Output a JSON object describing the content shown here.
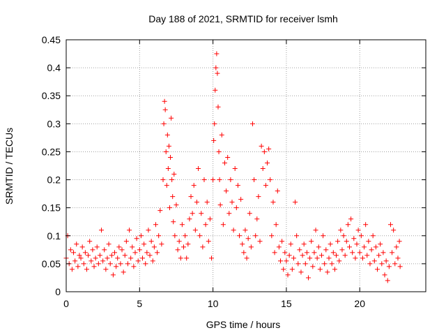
{
  "chart_data": {
    "type": "scatter",
    "title": "Day 188 of 2021, SRMTID for receiver lsmh",
    "xlabel": "GPS time / hours",
    "ylabel": "SRMTID / TECUs",
    "xlim": [
      0,
      24.5
    ],
    "ylim": [
      0,
      0.45
    ],
    "xticks": [
      0,
      5,
      10,
      15,
      20
    ],
    "xtick_labels": [
      "0",
      "5",
      "10",
      "15",
      "20"
    ],
    "yticks": [
      0,
      0.05,
      0.1,
      0.15,
      0.2,
      0.25,
      0.3,
      0.35,
      0.4,
      0.45
    ],
    "ytick_labels": [
      "0",
      "0.05",
      "0.1",
      "0.15",
      "0.2",
      "0.25",
      "0.3",
      "0.35",
      "0.4",
      "0.45"
    ],
    "grid": true,
    "marker": "+",
    "color": "#ff0000",
    "series": [
      {
        "name": "SRMTID",
        "points": [
          [
            0.0,
            0.06
          ],
          [
            0.1,
            0.1
          ],
          [
            0.2,
            0.05
          ],
          [
            0.3,
            0.075
          ],
          [
            0.4,
            0.04
          ],
          [
            0.5,
            0.07
          ],
          [
            0.6,
            0.055
          ],
          [
            0.7,
            0.085
          ],
          [
            0.8,
            0.045
          ],
          [
            0.9,
            0.065
          ],
          [
            1.0,
            0.06
          ],
          [
            1.1,
            0.08
          ],
          [
            1.2,
            0.05
          ],
          [
            1.3,
            0.07
          ],
          [
            1.4,
            0.04
          ],
          [
            1.5,
            0.065
          ],
          [
            1.6,
            0.09
          ],
          [
            1.7,
            0.055
          ],
          [
            1.8,
            0.075
          ],
          [
            1.9,
            0.045
          ],
          [
            2.0,
            0.06
          ],
          [
            2.1,
            0.08
          ],
          [
            2.2,
            0.05
          ],
          [
            2.3,
            0.065
          ],
          [
            2.4,
            0.11
          ],
          [
            2.5,
            0.055
          ],
          [
            2.6,
            0.075
          ],
          [
            2.7,
            0.04
          ],
          [
            2.8,
            0.06
          ],
          [
            2.9,
            0.085
          ],
          [
            3.0,
            0.05
          ],
          [
            3.1,
            0.065
          ],
          [
            3.2,
            0.03
          ],
          [
            3.3,
            0.07
          ],
          [
            3.4,
            0.045
          ],
          [
            3.5,
            0.06
          ],
          [
            3.6,
            0.08
          ],
          [
            3.7,
            0.05
          ],
          [
            3.8,
            0.075
          ],
          [
            3.9,
            0.035
          ],
          [
            4.0,
            0.065
          ],
          [
            4.1,
            0.09
          ],
          [
            4.2,
            0.05
          ],
          [
            4.3,
            0.11
          ],
          [
            4.4,
            0.06
          ],
          [
            4.5,
            0.08
          ],
          [
            4.6,
            0.045
          ],
          [
            4.7,
            0.07
          ],
          [
            4.8,
            0.095
          ],
          [
            4.9,
            0.055
          ],
          [
            5.0,
            0.075
          ],
          [
            5.1,
            0.1
          ],
          [
            5.2,
            0.06
          ],
          [
            5.3,
            0.085
          ],
          [
            5.4,
            0.05
          ],
          [
            5.5,
            0.07
          ],
          [
            5.6,
            0.11
          ],
          [
            5.7,
            0.065
          ],
          [
            5.8,
            0.09
          ],
          [
            5.9,
            0.055
          ],
          [
            6.0,
            0.08
          ],
          [
            6.1,
            0.12
          ],
          [
            6.2,
            0.07
          ],
          [
            6.3,
            0.1
          ],
          [
            6.4,
            0.145
          ],
          [
            6.5,
            0.085
          ],
          [
            6.6,
            0.2
          ],
          [
            6.65,
            0.3
          ],
          [
            6.7,
            0.34
          ],
          [
            6.75,
            0.325
          ],
          [
            6.8,
            0.25
          ],
          [
            6.85,
            0.19
          ],
          [
            6.9,
            0.28
          ],
          [
            6.95,
            0.22
          ],
          [
            7.0,
            0.26
          ],
          [
            7.05,
            0.15
          ],
          [
            7.1,
            0.24
          ],
          [
            7.15,
            0.31
          ],
          [
            7.2,
            0.2
          ],
          [
            7.25,
            0.17
          ],
          [
            7.3,
            0.125
          ],
          [
            7.35,
            0.21
          ],
          [
            7.4,
            0.1
          ],
          [
            7.5,
            0.155
          ],
          [
            7.6,
            0.075
          ],
          [
            7.7,
            0.09
          ],
          [
            7.8,
            0.06
          ],
          [
            7.9,
            0.12
          ],
          [
            8.0,
            0.08
          ],
          [
            8.1,
            0.1
          ],
          [
            8.2,
            0.06
          ],
          [
            8.3,
            0.085
          ],
          [
            8.4,
            0.13
          ],
          [
            8.5,
            0.17
          ],
          [
            8.6,
            0.14
          ],
          [
            8.7,
            0.19
          ],
          [
            8.8,
            0.11
          ],
          [
            8.9,
            0.16
          ],
          [
            9.0,
            0.22
          ],
          [
            9.1,
            0.1
          ],
          [
            9.2,
            0.14
          ],
          [
            9.3,
            0.08
          ],
          [
            9.4,
            0.2
          ],
          [
            9.5,
            0.12
          ],
          [
            9.6,
            0.16
          ],
          [
            9.7,
            0.09
          ],
          [
            9.8,
            0.13
          ],
          [
            9.9,
            0.06
          ],
          [
            10.0,
            0.2
          ],
          [
            10.05,
            0.27
          ],
          [
            10.1,
            0.3
          ],
          [
            10.15,
            0.36
          ],
          [
            10.2,
            0.4
          ],
          [
            10.25,
            0.425
          ],
          [
            10.3,
            0.39
          ],
          [
            10.35,
            0.33
          ],
          [
            10.4,
            0.25
          ],
          [
            10.45,
            0.2
          ],
          [
            10.5,
            0.155
          ],
          [
            10.6,
            0.28
          ],
          [
            10.7,
            0.12
          ],
          [
            10.8,
            0.23
          ],
          [
            10.9,
            0.18
          ],
          [
            11.0,
            0.24
          ],
          [
            11.1,
            0.14
          ],
          [
            11.2,
            0.2
          ],
          [
            11.3,
            0.16
          ],
          [
            11.4,
            0.11
          ],
          [
            11.5,
            0.22
          ],
          [
            11.6,
            0.15
          ],
          [
            11.7,
            0.19
          ],
          [
            11.8,
            0.1
          ],
          [
            11.9,
            0.165
          ],
          [
            12.0,
            0.085
          ],
          [
            12.1,
            0.07
          ],
          [
            12.2,
            0.11
          ],
          [
            12.3,
            0.06
          ],
          [
            12.4,
            0.095
          ],
          [
            12.5,
            0.14
          ],
          [
            12.6,
            0.08
          ],
          [
            12.7,
            0.3
          ],
          [
            12.8,
            0.2
          ],
          [
            12.9,
            0.1
          ],
          [
            13.0,
            0.13
          ],
          [
            13.1,
            0.17
          ],
          [
            13.2,
            0.09
          ],
          [
            13.3,
            0.26
          ],
          [
            13.4,
            0.22
          ],
          [
            13.5,
            0.25
          ],
          [
            13.6,
            0.19
          ],
          [
            13.7,
            0.23
          ],
          [
            13.8,
            0.255
          ],
          [
            13.9,
            0.2
          ],
          [
            14.0,
            0.1
          ],
          [
            14.1,
            0.16
          ],
          [
            14.2,
            0.07
          ],
          [
            14.3,
            0.12
          ],
          [
            14.4,
            0.18
          ],
          [
            14.5,
            0.08
          ],
          [
            14.6,
            0.055
          ],
          [
            14.7,
            0.09
          ],
          [
            14.8,
            0.04
          ],
          [
            14.9,
            0.07
          ],
          [
            15.0,
            0.055
          ],
          [
            15.1,
            0.03
          ],
          [
            15.2,
            0.065
          ],
          [
            15.3,
            0.085
          ],
          [
            15.4,
            0.04
          ],
          [
            15.5,
            0.06
          ],
          [
            15.6,
            0.16
          ],
          [
            15.7,
            0.1
          ],
          [
            15.8,
            0.05
          ],
          [
            15.9,
            0.075
          ],
          [
            16.0,
            0.035
          ],
          [
            16.1,
            0.065
          ],
          [
            16.2,
            0.085
          ],
          [
            16.3,
            0.05
          ],
          [
            16.4,
            0.07
          ],
          [
            16.5,
            0.025
          ],
          [
            16.6,
            0.06
          ],
          [
            16.7,
            0.09
          ],
          [
            16.8,
            0.045
          ],
          [
            16.9,
            0.07
          ],
          [
            17.0,
            0.11
          ],
          [
            17.1,
            0.06
          ],
          [
            17.2,
            0.08
          ],
          [
            17.3,
            0.04
          ],
          [
            17.4,
            0.065
          ],
          [
            17.5,
            0.1
          ],
          [
            17.6,
            0.05
          ],
          [
            17.7,
            0.075
          ],
          [
            17.8,
            0.035
          ],
          [
            17.9,
            0.06
          ],
          [
            18.0,
            0.085
          ],
          [
            18.1,
            0.05
          ],
          [
            18.2,
            0.07
          ],
          [
            18.3,
            0.04
          ],
          [
            18.4,
            0.065
          ],
          [
            18.5,
            0.09
          ],
          [
            18.6,
            0.055
          ],
          [
            18.7,
            0.11
          ],
          [
            18.8,
            0.075
          ],
          [
            18.9,
            0.1
          ],
          [
            19.0,
            0.065
          ],
          [
            19.1,
            0.09
          ],
          [
            19.2,
            0.12
          ],
          [
            19.3,
            0.08
          ],
          [
            19.4,
            0.13
          ],
          [
            19.5,
            0.07
          ],
          [
            19.6,
            0.095
          ],
          [
            19.7,
            0.06
          ],
          [
            19.8,
            0.085
          ],
          [
            19.9,
            0.11
          ],
          [
            20.0,
            0.07
          ],
          [
            20.1,
            0.1
          ],
          [
            20.2,
            0.06
          ],
          [
            20.3,
            0.08
          ],
          [
            20.4,
            0.12
          ],
          [
            20.5,
            0.065
          ],
          [
            20.6,
            0.09
          ],
          [
            20.7,
            0.05
          ],
          [
            20.8,
            0.075
          ],
          [
            20.9,
            0.1
          ],
          [
            21.0,
            0.055
          ],
          [
            21.1,
            0.08
          ],
          [
            21.2,
            0.04
          ],
          [
            21.3,
            0.065
          ],
          [
            21.4,
            0.085
          ],
          [
            21.5,
            0.05
          ],
          [
            21.6,
            0.07
          ],
          [
            21.7,
            0.03
          ],
          [
            21.8,
            0.055
          ],
          [
            21.9,
            0.02
          ],
          [
            22.0,
            0.045
          ],
          [
            22.1,
            0.12
          ],
          [
            22.2,
            0.07
          ],
          [
            22.3,
            0.11
          ],
          [
            22.4,
            0.05
          ],
          [
            22.5,
            0.08
          ],
          [
            22.6,
            0.06
          ],
          [
            22.7,
            0.09
          ],
          [
            22.75,
            0.045
          ]
        ]
      }
    ]
  }
}
